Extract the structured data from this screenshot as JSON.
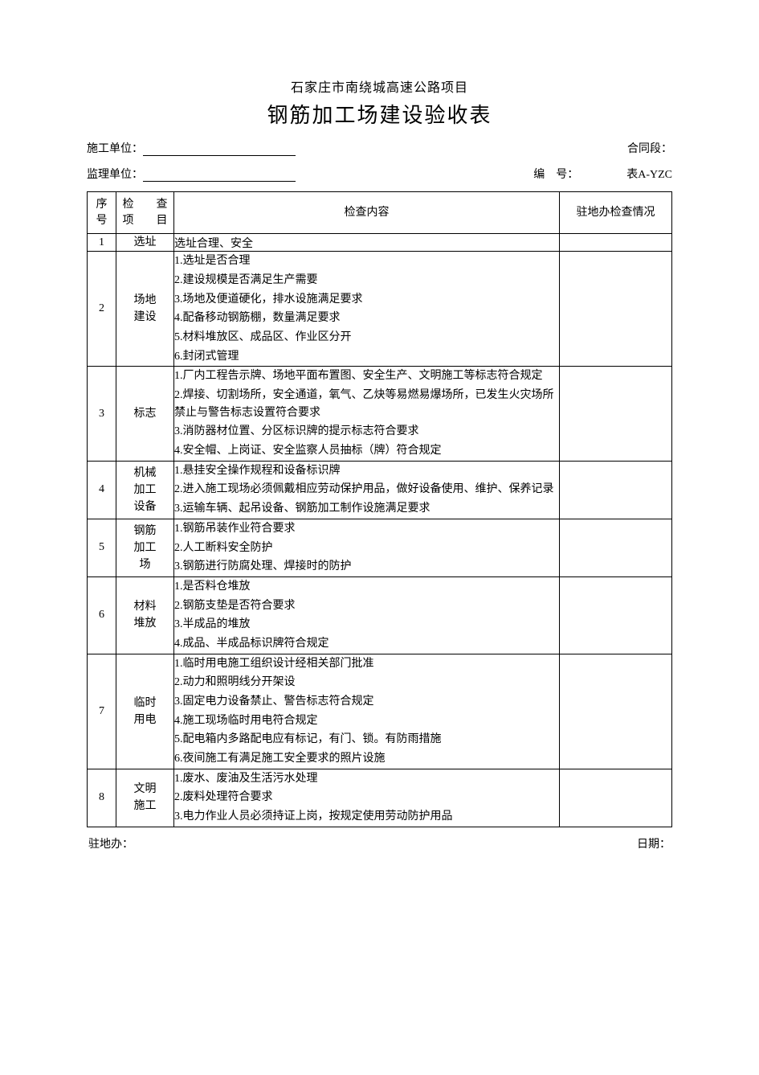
{
  "header": {
    "project": "石家庄市南绕城高速公路项目",
    "title": "钢筋加工场建设验收表"
  },
  "meta": {
    "construction_unit_label": "施工单位：",
    "contract_section_label": "合同段：",
    "supervision_unit_label": "监理单位：",
    "serial_label": "编　号：",
    "form_code": "表A-YZC"
  },
  "columns": {
    "seq": "序号",
    "item_a": "检　　查",
    "item_b": "项　　目",
    "content": "检查内容",
    "check": "驻地办检查情况"
  },
  "rows": [
    {
      "seq": "1",
      "item": "选址",
      "lines": [
        "选址合理、安全"
      ]
    },
    {
      "seq": "2",
      "item": "场地\n建设",
      "lines": [
        "1.选址是否合理",
        "2.建设规模是否满足生产需要",
        "3.场地及便道硬化，排水设施满足要求",
        "4.配备移动钢筋棚，数量满足要求",
        "5.材料堆放区、成品区、作业区分开",
        "6.封闭式管理"
      ]
    },
    {
      "seq": "3",
      "item": "标志",
      "lines": [
        "1.厂内工程告示牌、场地平面布置图、安全生产、文明施工等标志符合规定",
        "2.焊接、切割场所，安全通道，氧气、乙炔等易燃易爆场所，已发生火灾场所禁止与警告标志设置符合要求",
        "3.消防器材位置、分区标识牌的提示标志符合要求",
        "4.安全帽、上岗证、安全监察人员抽标（牌）符合规定"
      ]
    },
    {
      "seq": "4",
      "item": "机械\n加工\n设备",
      "lines": [
        "1.悬挂安全操作规程和设备标识牌",
        "2.进入施工现场必须佩戴相应劳动保护用品，做好设备使用、维护、保养记录",
        "3.运输车辆、起吊设备、钢筋加工制作设施满足要求"
      ]
    },
    {
      "seq": "5",
      "item": "钢筋\n加工\n场",
      "lines": [
        "1.钢筋吊装作业符合要求",
        "2.人工断料安全防护",
        "3.钢筋进行防腐处理、焊接时的防护"
      ]
    },
    {
      "seq": "6",
      "item": "材料\n堆放",
      "lines": [
        "1.是否料仓堆放",
        "2.钢筋支垫是否符合要求",
        "3.半成品的堆放",
        "4.成品、半成品标识牌符合规定"
      ]
    },
    {
      "seq": "7",
      "item": "临时\n用电",
      "lines": [
        "1.临时用电施工组织设计经相关部门批准",
        "2.动力和照明线分开架设",
        "3.固定电力设备禁止、警告标志符合规定",
        "4.施工现场临时用电符合规定",
        "5.配电箱内多路配电应有标记，有门、锁。有防雨措施",
        "6.夜间施工有满足施工安全要求的照片设施"
      ]
    },
    {
      "seq": "8",
      "item": "文明\n施工",
      "lines": [
        "1.废水、废油及生活污水处理",
        "2.废料处理符合要求",
        "3.电力作业人员必须持证上岗，按规定使用劳动防护用品"
      ]
    }
  ],
  "footer": {
    "left": "驻地办：",
    "right": "日期："
  }
}
